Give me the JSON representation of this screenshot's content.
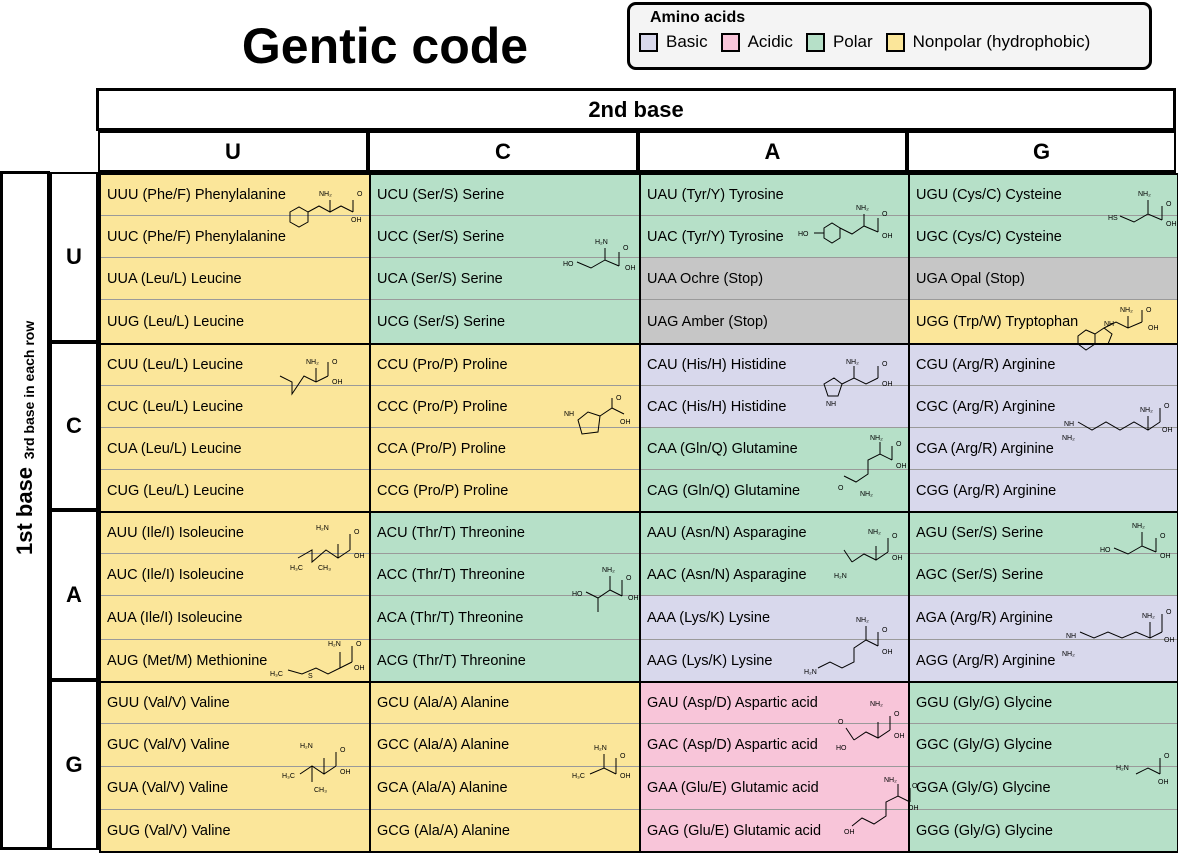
{
  "title": "Gentic code",
  "legend": {
    "title": "Amino acids",
    "items": [
      {
        "label": "Basic",
        "color": "#d8d8ec"
      },
      {
        "label": "Acidic",
        "color": "#f8c5d9"
      },
      {
        "label": "Polar",
        "color": "#b6e0c8"
      },
      {
        "label": "Nonpolar (hydrophobic)",
        "color": "#fbe69a"
      }
    ]
  },
  "second_base_label": "2nd base",
  "columns": [
    "U",
    "C",
    "A",
    "G"
  ],
  "first_base_label": "1st base",
  "third_base_label": "3rd base in each row",
  "rows": [
    "U",
    "C",
    "A",
    "G"
  ],
  "colors": {
    "basic": "#d8d8ec",
    "acidic": "#f8c5d9",
    "polar": "#b6e0c8",
    "nonpolar": "#fbe69a",
    "stop": "#c6c6c6"
  },
  "cells": [
    [
      "UUU (Phe/F) Phenylalanine",
      "UCU (Ser/S) Serine",
      "UAU (Tyr/Y) Tyrosine",
      "UGU (Cys/C) Cysteine"
    ],
    [
      "UUC (Phe/F) Phenylalanine",
      "UCC (Ser/S) Serine",
      "UAC (Tyr/Y) Tyrosine",
      "UGC (Cys/C) Cysteine"
    ],
    [
      "UUA (Leu/L) Leucine",
      "UCA (Ser/S) Serine",
      "UAA Ochre (Stop)",
      "UGA Opal (Stop)"
    ],
    [
      "UUG (Leu/L) Leucine",
      "UCG (Ser/S) Serine",
      "UAG Amber (Stop)",
      "UGG (Trp/W) Tryptophan"
    ],
    [
      "CUU (Leu/L) Leucine",
      "CCU (Pro/P) Proline",
      "CAU (His/H) Histidine",
      "CGU (Arg/R) Arginine"
    ],
    [
      "CUC (Leu/L) Leucine",
      "CCC (Pro/P) Proline",
      "CAC (His/H) Histidine",
      "CGC (Arg/R) Arginine"
    ],
    [
      "CUA (Leu/L) Leucine",
      "CCA (Pro/P) Proline",
      "CAA (Gln/Q) Glutamine",
      "CGA (Arg/R) Arginine"
    ],
    [
      "CUG (Leu/L) Leucine",
      "CCG (Pro/P) Proline",
      "CAG (Gln/Q) Glutamine",
      "CGG (Arg/R) Arginine"
    ],
    [
      "AUU (Ile/I) Isoleucine",
      "ACU (Thr/T) Threonine",
      "AAU (Asn/N) Asparagine",
      "AGU (Ser/S) Serine"
    ],
    [
      "AUC (Ile/I) Isoleucine",
      "ACC (Thr/T) Threonine",
      "AAC (Asn/N) Asparagine",
      "AGC (Ser/S) Serine"
    ],
    [
      "AUA (Ile/I) Isoleucine",
      "ACA (Thr/T) Threonine",
      "AAA (Lys/K) Lysine",
      "AGA (Arg/R) Arginine"
    ],
    [
      "AUG (Met/M) Methionine",
      "ACG (Thr/T) Threonine",
      "AAG (Lys/K) Lysine",
      "AGG (Arg/R) Arginine"
    ],
    [
      "GUU (Val/V) Valine",
      "GCU (Ala/A) Alanine",
      "GAU (Asp/D) Aspartic acid",
      "GGU (Gly/G) Glycine"
    ],
    [
      "GUC (Val/V) Valine",
      "GCC (Ala/A) Alanine",
      "GAC (Asp/D) Aspartic acid",
      "GGC (Gly/G) Glycine"
    ],
    [
      "GUA (Val/V) Valine",
      "GCA (Ala/A) Alanine",
      "GAA (Glu/E) Glutamic acid",
      "GGA (Gly/G) Glycine"
    ],
    [
      "GUG (Val/V) Valine",
      "GCG (Ala/A) Alanine",
      "GAG (Glu/E) Glutamic acid",
      "GGG (Gly/G) Glycine"
    ]
  ],
  "cell_classes": [
    [
      "nonpolar",
      "polar",
      "polar",
      "polar"
    ],
    [
      "nonpolar",
      "polar",
      "polar",
      "polar"
    ],
    [
      "nonpolar",
      "polar",
      "stop",
      "stop"
    ],
    [
      "nonpolar",
      "polar",
      "stop",
      "nonpolar"
    ],
    [
      "nonpolar",
      "nonpolar",
      "basic",
      "basic"
    ],
    [
      "nonpolar",
      "nonpolar",
      "basic",
      "basic"
    ],
    [
      "nonpolar",
      "nonpolar",
      "polar",
      "basic"
    ],
    [
      "nonpolar",
      "nonpolar",
      "polar",
      "basic"
    ],
    [
      "nonpolar",
      "polar",
      "polar",
      "polar"
    ],
    [
      "nonpolar",
      "polar",
      "polar",
      "polar"
    ],
    [
      "nonpolar",
      "polar",
      "basic",
      "basic"
    ],
    [
      "nonpolar",
      "polar",
      "basic",
      "basic"
    ],
    [
      "nonpolar",
      "nonpolar",
      "acidic",
      "polar"
    ],
    [
      "nonpolar",
      "nonpolar",
      "acidic",
      "polar"
    ],
    [
      "nonpolar",
      "nonpolar",
      "acidic",
      "polar"
    ],
    [
      "nonpolar",
      "nonpolar",
      "acidic",
      "polar"
    ]
  ],
  "atom_labels": {
    "nh2": "NH₂",
    "oh": "OH",
    "o": "O",
    "nh": "NH",
    "ho": "HO",
    "hs": "HS",
    "h3c": "H₃C",
    "ch3": "CH₃",
    "s": "S",
    "h2n": "H₂N"
  }
}
